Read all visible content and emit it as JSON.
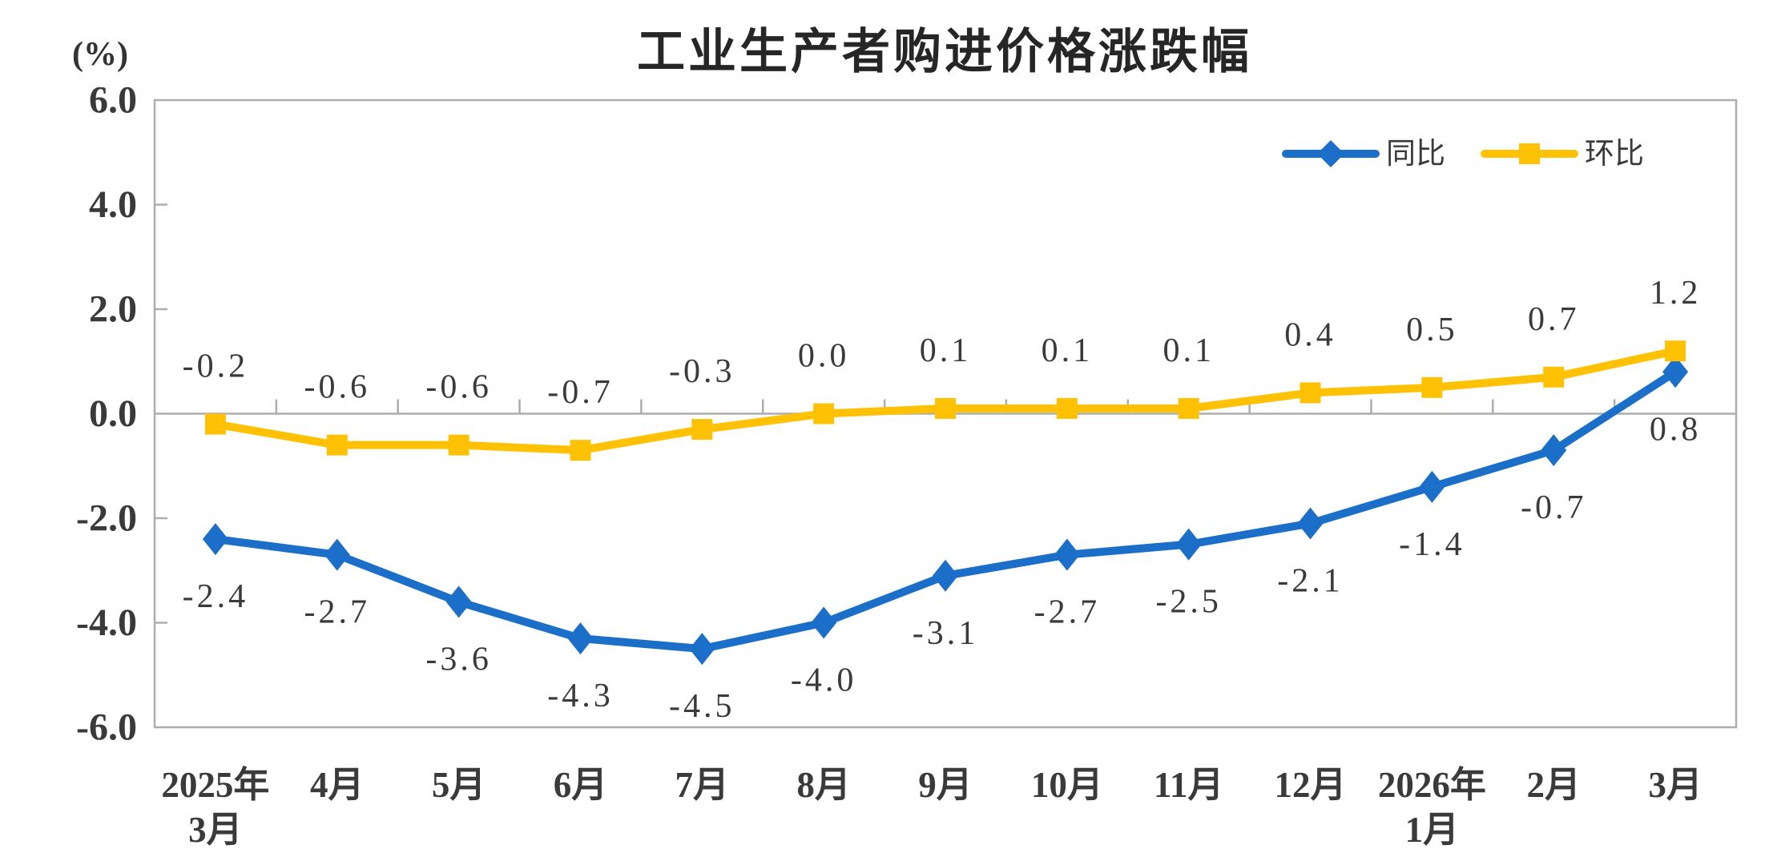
{
  "chart_data": {
    "type": "line",
    "title": "工业生产者购进价格涨跌幅",
    "unit_label": "(%)",
    "categories": [
      [
        "2025年",
        "3月"
      ],
      [
        "4月"
      ],
      [
        "5月"
      ],
      [
        "6月"
      ],
      [
        "7月"
      ],
      [
        "8月"
      ],
      [
        "9月"
      ],
      [
        "10月"
      ],
      [
        "11月"
      ],
      [
        "12月"
      ],
      [
        "2026年",
        "1月"
      ],
      [
        "2月"
      ],
      [
        "3月"
      ]
    ],
    "y_ticks": [
      {
        "label": "6.0",
        "value": 6
      },
      {
        "label": "4.0",
        "value": 4
      },
      {
        "label": "2.0",
        "value": 2
      },
      {
        "label": "0.0",
        "value": 0
      },
      {
        "label": "-2.0",
        "value": -2
      },
      {
        "label": "-4.0",
        "value": -4
      },
      {
        "label": "-6.0",
        "value": -6
      }
    ],
    "ylim": [
      -6,
      6
    ],
    "grid": "zero-line-only",
    "legend_position": "top-right-inside",
    "series": [
      {
        "name": "同比",
        "color": "#1b6fc9",
        "marker": "diamond",
        "label_side": "below",
        "values": [
          -2.4,
          -2.7,
          -3.6,
          -4.3,
          -4.5,
          -4.0,
          -3.1,
          -2.7,
          -2.5,
          -2.1,
          -1.4,
          -0.7,
          0.8
        ],
        "labels": [
          "-2.4",
          "-2.7",
          "-3.6",
          "-4.3",
          "-4.5",
          "-4.0",
          "-3.1",
          "-2.7",
          "-2.5",
          "-2.1",
          "-1.4",
          "-0.7",
          "0.8"
        ]
      },
      {
        "name": "环比",
        "color": "#ffc104",
        "marker": "square",
        "label_side": "above",
        "values": [
          -0.2,
          -0.6,
          -0.6,
          -0.7,
          -0.3,
          0.0,
          0.1,
          0.1,
          0.1,
          0.4,
          0.5,
          0.7,
          1.2
        ],
        "labels": [
          "-0.2",
          "-0.6",
          "-0.6",
          "-0.7",
          "-0.3",
          "0.0",
          "0.1",
          "0.1",
          "0.1",
          "0.4",
          "0.5",
          "0.7",
          "1.2"
        ]
      }
    ],
    "colors": {
      "axis": "#adadad",
      "text": "#3a3a3a"
    }
  }
}
